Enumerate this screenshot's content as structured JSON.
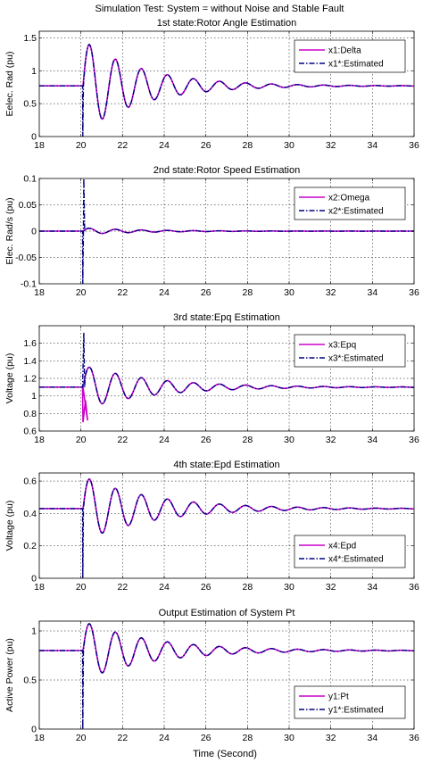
{
  "figure_title": "Simulation Test: System = without Noise and Stable Fault",
  "xlabel": "Time (Second)",
  "colors": {
    "actual": "#cc00cc",
    "estimated": "#000080"
  },
  "chart_data": [
    {
      "type": "line",
      "title": "1st state:Rotor Angle Estimation",
      "ylabel": "Eelec. Rad (pu)",
      "xlim": [
        18,
        36
      ],
      "ylim": [
        0,
        1.6
      ],
      "xticks": [
        18,
        20,
        22,
        24,
        26,
        28,
        30,
        32,
        34,
        36
      ],
      "yticks": [
        0,
        0.5,
        1,
        1.5
      ],
      "ytick_labels": [
        "0",
        "0.5",
        "1",
        "1.5"
      ],
      "legend_position": "top-right",
      "fault_time": 20.1,
      "steady": 0.77,
      "amplitude": 0.7,
      "period": 1.25,
      "decay": 0.35,
      "estimate_spike_min": 0,
      "series": [
        {
          "name": "x1:Delta",
          "style": "solid"
        },
        {
          "name": "x1*:Estimated",
          "style": "dashdot"
        }
      ],
      "grid": true
    },
    {
      "type": "line",
      "title": "2nd state:Rotor Speed Estimation",
      "ylabel": "Elec. Rad/s (pu)",
      "xlim": [
        18,
        36
      ],
      "ylim": [
        -0.1,
        0.1
      ],
      "xticks": [
        18,
        20,
        22,
        24,
        26,
        28,
        30,
        32,
        34,
        36
      ],
      "yticks": [
        -0.1,
        -0.05,
        0,
        0.05,
        0.1
      ],
      "ytick_labels": [
        "-0.1",
        "-0.05",
        "0",
        "0.05",
        "0.1"
      ],
      "legend_position": "top-right",
      "fault_time": 20.1,
      "steady": 0,
      "amplitude": 0.006,
      "period": 1.25,
      "decay": 0.35,
      "estimate_spike_min": -0.1,
      "estimate_spike_max": 0.1,
      "series": [
        {
          "name": "x2:Omega",
          "style": "solid"
        },
        {
          "name": "x2*:Estimated",
          "style": "dashdot"
        }
      ],
      "grid": true
    },
    {
      "type": "line",
      "title": "3rd state:Epq Estimation",
      "ylabel": "Voltage (pu)",
      "xlim": [
        18,
        36
      ],
      "ylim": [
        0.6,
        1.8
      ],
      "xticks": [
        18,
        20,
        22,
        24,
        26,
        28,
        30,
        32,
        34,
        36
      ],
      "yticks": [
        0.6,
        0.8,
        1,
        1.2,
        1.4,
        1.6
      ],
      "ytick_labels": [
        "0.6",
        "0.8",
        "1",
        "1.2",
        "1.4",
        "1.6"
      ],
      "legend_position": "top-right",
      "fault_time": 20.1,
      "steady": 1.1,
      "amplitude": 0.25,
      "period": 1.25,
      "decay": 0.3,
      "estimate_spike_max": 1.72,
      "series": [
        {
          "name": "x3:Epq",
          "style": "solid"
        },
        {
          "name": "x3*:Estimated",
          "style": "dashdot"
        }
      ],
      "grid": true
    },
    {
      "type": "line",
      "title": "4th state:Epd Estimation",
      "ylabel": "Voltage (pu)",
      "xlim": [
        18,
        36
      ],
      "ylim": [
        0,
        0.65
      ],
      "xticks": [
        18,
        20,
        22,
        24,
        26,
        28,
        30,
        32,
        34,
        36
      ],
      "yticks": [
        0,
        0.2,
        0.4,
        0.6
      ],
      "ytick_labels": [
        "0",
        "0.2",
        "0.4",
        "0.6"
      ],
      "legend_position": "bottom-right",
      "fault_time": 20.1,
      "steady": 0.43,
      "amplitude": 0.2,
      "period": 1.25,
      "decay": 0.3,
      "estimate_spike_min": 0,
      "series": [
        {
          "name": "x4:Epd",
          "style": "solid"
        },
        {
          "name": "x4*:Estimated",
          "style": "dashdot"
        }
      ],
      "grid": true
    },
    {
      "type": "line",
      "title": "Output Estimation of System Pt",
      "ylabel": "Active Power (pu)",
      "xlim": [
        18,
        36
      ],
      "ylim": [
        0,
        1.1
      ],
      "xticks": [
        18,
        20,
        22,
        24,
        26,
        28,
        30,
        32,
        34,
        36
      ],
      "yticks": [
        0,
        0.5,
        1
      ],
      "ytick_labels": [
        "0",
        "0.5",
        "1"
      ],
      "legend_position": "bottom-right",
      "fault_time": 20.1,
      "steady": 0.8,
      "amplitude": 0.3,
      "period": 1.25,
      "decay": 0.3,
      "estimate_spike_min": 0,
      "series": [
        {
          "name": "y1:Pt",
          "style": "solid"
        },
        {
          "name": "y1*:Estimated",
          "style": "dashdot"
        }
      ],
      "grid": true
    }
  ]
}
